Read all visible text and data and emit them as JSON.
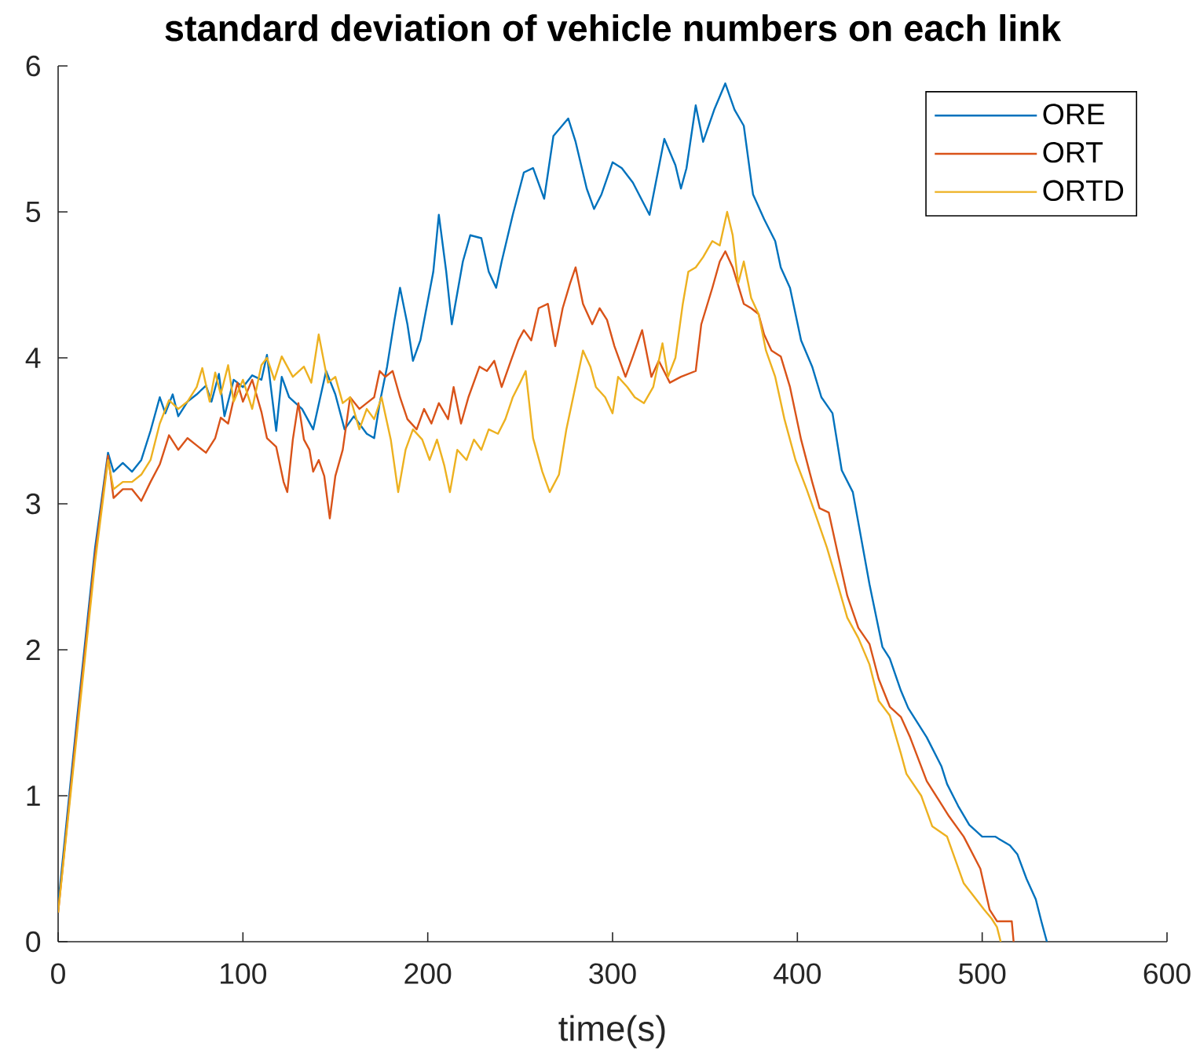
{
  "chart_data": {
    "type": "line",
    "title": "standard deviation of vehicle numbers on each link",
    "xlabel": "time(s)",
    "xlim": [
      0,
      600
    ],
    "ylim": [
      0,
      6
    ],
    "xticks": [
      0,
      100,
      200,
      300,
      400,
      500,
      600
    ],
    "yticks": [
      0,
      1,
      2,
      3,
      4,
      5,
      6
    ],
    "grid": false,
    "legend": "top right",
    "line_style": "solid",
    "series": [
      {
        "name": "ORE",
        "color": "#0072bd",
        "x": [
          0,
          10,
          20,
          27,
          30,
          35,
          40,
          45,
          50,
          55,
          58,
          62,
          65,
          70,
          75,
          80,
          83,
          87,
          90,
          95,
          100,
          105,
          110,
          113,
          118,
          121,
          125,
          132,
          138,
          145,
          150,
          155,
          160,
          167,
          171,
          174,
          178,
          182,
          185,
          189,
          192,
          196,
          203,
          206,
          210,
          213,
          219,
          223,
          229,
          233,
          237,
          240,
          246,
          252,
          257,
          263,
          268,
          276,
          280,
          286,
          290,
          294,
          300,
          305,
          311,
          320,
          328,
          334,
          337,
          340,
          345,
          349,
          355,
          361,
          366,
          371,
          376,
          382,
          388,
          391,
          396,
          402,
          408,
          413,
          419,
          424,
          430,
          439,
          446,
          450,
          456,
          460,
          470,
          478,
          481,
          487,
          493,
          500,
          507,
          515,
          519,
          524,
          529,
          532,
          535
        ],
        "values": [
          0.25,
          1.5,
          2.7,
          3.35,
          3.22,
          3.28,
          3.22,
          3.3,
          3.5,
          3.73,
          3.62,
          3.75,
          3.6,
          3.7,
          3.75,
          3.81,
          3.7,
          3.89,
          3.6,
          3.85,
          3.8,
          3.88,
          3.85,
          4.02,
          3.5,
          3.87,
          3.73,
          3.65,
          3.51,
          3.91,
          3.75,
          3.51,
          3.6,
          3.48,
          3.45,
          3.69,
          3.94,
          4.26,
          4.48,
          4.23,
          3.98,
          4.12,
          4.59,
          4.98,
          4.59,
          4.23,
          4.66,
          4.84,
          4.82,
          4.59,
          4.48,
          4.66,
          4.98,
          5.27,
          5.3,
          5.09,
          5.52,
          5.64,
          5.48,
          5.16,
          5.02,
          5.12,
          5.34,
          5.3,
          5.2,
          4.98,
          5.5,
          5.32,
          5.16,
          5.3,
          5.73,
          5.48,
          5.7,
          5.88,
          5.7,
          5.59,
          5.12,
          4.95,
          4.8,
          4.62,
          4.48,
          4.12,
          3.94,
          3.73,
          3.62,
          3.23,
          3.08,
          2.45,
          2.02,
          1.94,
          1.72,
          1.6,
          1.4,
          1.2,
          1.08,
          0.93,
          0.8,
          0.72,
          0.72,
          0.66,
          0.6,
          0.43,
          0.29,
          0.14,
          0
        ]
      },
      {
        "name": "ORT",
        "color": "#d95319",
        "x": [
          0,
          10,
          20,
          27,
          30,
          35,
          40,
          45,
          50,
          55,
          60,
          65,
          70,
          75,
          80,
          85,
          88,
          92,
          97,
          100,
          105,
          110,
          113,
          118,
          122,
          124,
          127,
          130,
          133,
          136,
          138,
          141,
          144,
          147,
          150,
          154,
          158,
          163,
          167,
          171,
          174,
          177,
          181,
          185,
          189,
          194,
          198,
          202,
          206,
          211,
          214,
          218,
          222,
          228,
          232,
          236,
          240,
          245,
          249,
          252,
          256,
          260,
          265,
          269,
          273,
          277,
          280,
          284,
          289,
          293,
          297,
          301,
          307,
          311,
          316,
          321,
          325,
          331,
          337,
          345,
          348,
          354,
          358,
          361,
          365,
          371,
          375,
          379,
          382,
          386,
          391,
          396,
          402,
          408,
          412,
          417,
          422,
          427,
          433,
          439,
          444,
          450,
          456,
          461,
          470,
          476,
          482,
          490,
          499,
          504,
          508,
          516,
          517
        ],
        "values": [
          0.2,
          1.45,
          2.65,
          3.33,
          3.04,
          3.1,
          3.1,
          3.02,
          3.15,
          3.27,
          3.47,
          3.37,
          3.45,
          3.4,
          3.35,
          3.45,
          3.59,
          3.55,
          3.83,
          3.7,
          3.85,
          3.63,
          3.45,
          3.39,
          3.15,
          3.08,
          3.44,
          3.69,
          3.44,
          3.37,
          3.22,
          3.3,
          3.19,
          2.9,
          3.19,
          3.37,
          3.73,
          3.65,
          3.69,
          3.73,
          3.91,
          3.87,
          3.91,
          3.73,
          3.58,
          3.51,
          3.65,
          3.55,
          3.69,
          3.58,
          3.8,
          3.55,
          3.73,
          3.94,
          3.91,
          3.98,
          3.8,
          3.98,
          4.12,
          4.19,
          4.12,
          4.34,
          4.37,
          4.08,
          4.34,
          4.51,
          4.62,
          4.37,
          4.23,
          4.34,
          4.26,
          4.08,
          3.87,
          4.01,
          4.19,
          3.87,
          3.98,
          3.83,
          3.87,
          3.91,
          4.23,
          4.48,
          4.66,
          4.73,
          4.62,
          4.37,
          4.34,
          4.3,
          4.16,
          4.05,
          4.01,
          3.8,
          3.44,
          3.15,
          2.97,
          2.94,
          2.65,
          2.37,
          2.15,
          2.04,
          1.8,
          1.61,
          1.54,
          1.4,
          1.1,
          0.98,
          0.86,
          0.72,
          0.5,
          0.22,
          0.14,
          0.14,
          0
        ]
      },
      {
        "name": "ORTD",
        "color": "#edb120",
        "x": [
          0,
          10,
          20,
          27,
          30,
          35,
          40,
          45,
          50,
          55,
          60,
          65,
          70,
          75,
          78,
          82,
          85,
          88,
          92,
          95,
          100,
          105,
          110,
          113,
          117,
          121,
          127,
          133,
          137,
          141,
          146,
          150,
          154,
          158,
          163,
          167,
          171,
          175,
          180,
          184,
          188,
          192,
          197,
          201,
          205,
          209,
          212,
          216,
          221,
          225,
          229,
          233,
          238,
          242,
          246,
          250,
          253,
          257,
          262,
          266,
          271,
          275,
          279,
          284,
          288,
          291,
          296,
          300,
          303,
          308,
          312,
          317,
          322,
          327,
          330,
          334,
          338,
          341,
          345,
          349,
          354,
          358,
          362,
          365,
          368,
          371,
          375,
          379,
          383,
          388,
          393,
          399,
          405,
          410,
          416,
          422,
          427,
          433,
          439,
          444,
          450,
          456,
          459,
          467,
          473,
          481,
          490,
          501,
          505,
          508,
          510
        ],
        "values": [
          0.2,
          1.4,
          2.6,
          3.3,
          3.1,
          3.15,
          3.15,
          3.2,
          3.3,
          3.55,
          3.71,
          3.65,
          3.7,
          3.8,
          3.93,
          3.7,
          3.9,
          3.75,
          3.95,
          3.7,
          3.85,
          3.65,
          3.95,
          4.0,
          3.85,
          4.01,
          3.87,
          3.94,
          3.83,
          4.16,
          3.83,
          3.87,
          3.69,
          3.73,
          3.51,
          3.65,
          3.58,
          3.73,
          3.44,
          3.08,
          3.37,
          3.51,
          3.44,
          3.3,
          3.44,
          3.26,
          3.08,
          3.37,
          3.3,
          3.44,
          3.37,
          3.51,
          3.48,
          3.58,
          3.73,
          3.83,
          3.91,
          3.45,
          3.22,
          3.08,
          3.2,
          3.51,
          3.75,
          4.05,
          3.94,
          3.8,
          3.73,
          3.62,
          3.87,
          3.8,
          3.73,
          3.69,
          3.8,
          4.1,
          3.87,
          4.0,
          4.37,
          4.59,
          4.62,
          4.69,
          4.8,
          4.77,
          5.0,
          4.84,
          4.51,
          4.66,
          4.41,
          4.3,
          4.05,
          3.87,
          3.58,
          3.3,
          3.1,
          2.92,
          2.7,
          2.44,
          2.22,
          2.08,
          1.9,
          1.65,
          1.55,
          1.29,
          1.15,
          1.0,
          0.79,
          0.72,
          0.4,
          0.22,
          0.16,
          0.1,
          0
        ]
      }
    ]
  }
}
